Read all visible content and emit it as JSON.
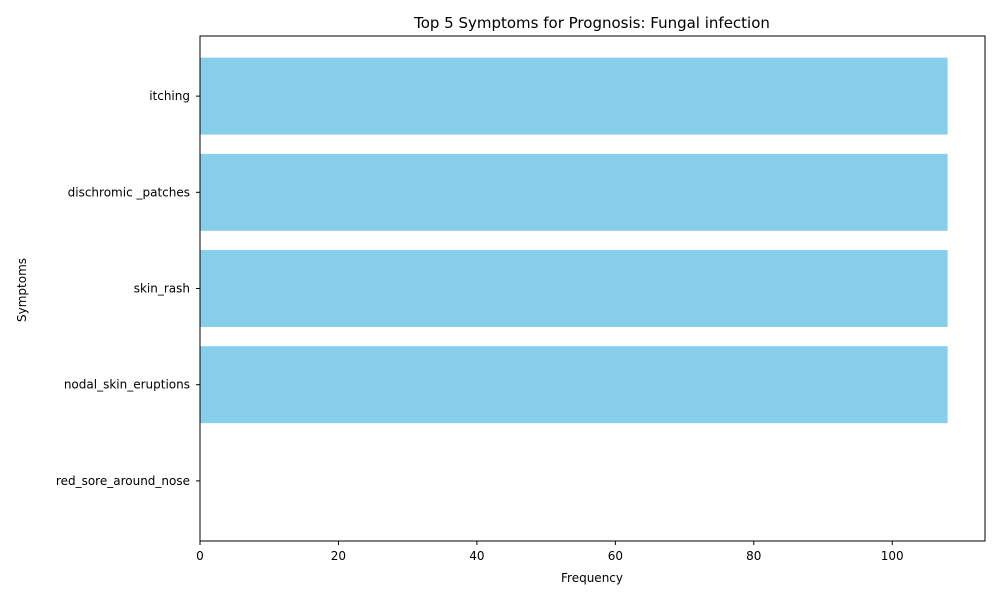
{
  "chart_data": {
    "type": "bar",
    "orientation": "horizontal",
    "title": "Top 5 Symptoms for Prognosis: Fungal infection",
    "xlabel": "Frequency",
    "ylabel": "Symptoms",
    "categories": [
      "itching",
      "dischromic _patches",
      "skin_rash",
      "nodal_skin_eruptions",
      "red_sore_around_nose"
    ],
    "values": [
      108,
      108,
      108,
      108,
      0
    ],
    "xlim": [
      0,
      113.4
    ],
    "xticks": [
      0,
      20,
      40,
      60,
      80,
      100
    ],
    "bar_color": "#87CEEB",
    "grid": false
  }
}
